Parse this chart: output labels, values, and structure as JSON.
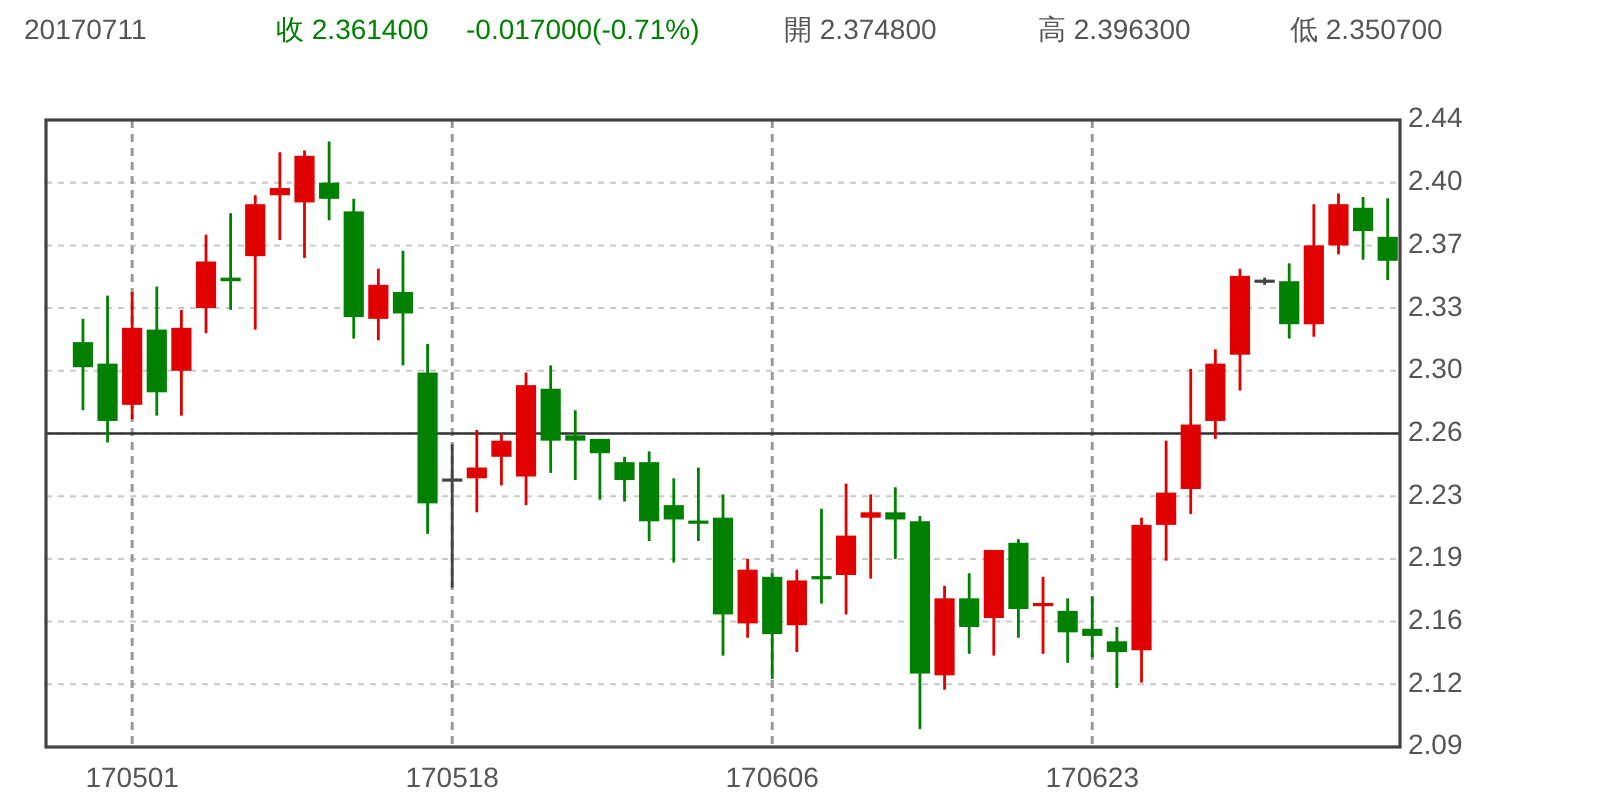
{
  "chart_data": {
    "type": "candlestick",
    "title": "20170711",
    "annotations": [
      "收 2.361400",
      "-0.017000(-0.71%)",
      "開 2.374800",
      "高 2.396300",
      "低 2.350700"
    ],
    "categories": [
      null,
      null,
      "170501",
      null,
      null,
      null,
      null,
      null,
      null,
      null,
      null,
      null,
      null,
      null,
      null,
      "170518",
      null,
      null,
      null,
      null,
      null,
      null,
      null,
      null,
      null,
      null,
      null,
      null,
      "170606",
      null,
      null,
      null,
      null,
      null,
      null,
      null,
      null,
      null,
      null,
      null,
      null,
      "170623",
      null,
      null,
      null,
      null,
      null,
      null,
      null,
      null,
      null,
      null,
      null,
      null
    ],
    "ohlc": [
      [
        2.316,
        2.329,
        2.278,
        2.302
      ],
      [
        2.304,
        2.342,
        2.26,
        2.272
      ],
      [
        2.281,
        2.344,
        2.273,
        2.324
      ],
      [
        2.323,
        2.347,
        2.275,
        2.288
      ],
      [
        2.3,
        2.334,
        2.275,
        2.324
      ],
      [
        2.335,
        2.376,
        2.321,
        2.361
      ],
      [
        2.352,
        2.388,
        2.334,
        2.35
      ],
      [
        2.364,
        2.398,
        2.323,
        2.393
      ],
      [
        2.398,
        2.422,
        2.373,
        2.402
      ],
      [
        2.394,
        2.423,
        2.363,
        2.42
      ],
      [
        2.405,
        2.428,
        2.384,
        2.396
      ],
      [
        2.389,
        2.396,
        2.318,
        2.33
      ],
      [
        2.329,
        2.357,
        2.317,
        2.348
      ],
      [
        2.344,
        2.367,
        2.303,
        2.332
      ],
      [
        2.299,
        2.315,
        2.209,
        2.226
      ],
      [
        2.239,
        2.259,
        2.179,
        2.239
      ],
      [
        2.24,
        2.267,
        2.221,
        2.246
      ],
      [
        2.252,
        2.265,
        2.236,
        2.261
      ],
      [
        2.241,
        2.299,
        2.225,
        2.292
      ],
      [
        2.29,
        2.303,
        2.243,
        2.261
      ],
      [
        2.264,
        2.278,
        2.239,
        2.261
      ],
      [
        2.262,
        2.262,
        2.228,
        2.254
      ],
      [
        2.249,
        2.252,
        2.227,
        2.239
      ],
      [
        2.249,
        2.255,
        2.205,
        2.216
      ],
      [
        2.225,
        2.24,
        2.193,
        2.217
      ],
      [
        2.216,
        2.246,
        2.205,
        2.215
      ],
      [
        2.218,
        2.231,
        2.141,
        2.164
      ],
      [
        2.159,
        2.195,
        2.151,
        2.189
      ],
      [
        2.185,
        2.187,
        2.128,
        2.153
      ],
      [
        2.158,
        2.189,
        2.143,
        2.183
      ],
      [
        2.185,
        2.223,
        2.17,
        2.184
      ],
      [
        2.186,
        2.237,
        2.164,
        2.208
      ],
      [
        2.218,
        2.231,
        2.184,
        2.221
      ],
      [
        2.221,
        2.235,
        2.195,
        2.217
      ],
      [
        2.216,
        2.219,
        2.1,
        2.131
      ],
      [
        2.13,
        2.18,
        2.122,
        2.173
      ],
      [
        2.173,
        2.187,
        2.142,
        2.157
      ],
      [
        2.162,
        2.2,
        2.141,
        2.2
      ],
      [
        2.204,
        2.206,
        2.151,
        2.167
      ],
      [
        2.169,
        2.185,
        2.142,
        2.17
      ],
      [
        2.166,
        2.173,
        2.137,
        2.154
      ],
      [
        2.156,
        2.174,
        2.14,
        2.152
      ],
      [
        2.149,
        2.157,
        2.123,
        2.143
      ],
      [
        2.144,
        2.218,
        2.126,
        2.214
      ],
      [
        2.214,
        2.261,
        2.194,
        2.232
      ],
      [
        2.234,
        2.301,
        2.22,
        2.27
      ],
      [
        2.272,
        2.312,
        2.262,
        2.304
      ],
      [
        2.309,
        2.357,
        2.289,
        2.353
      ],
      [
        2.35,
        2.352,
        2.348,
        2.35
      ],
      [
        2.35,
        2.36,
        2.318,
        2.326
      ],
      [
        2.326,
        2.393,
        2.319,
        2.37
      ],
      [
        2.37,
        2.399,
        2.365,
        2.393
      ],
      [
        2.391,
        2.397,
        2.362,
        2.378
      ],
      [
        2.3748,
        2.3963,
        2.3507,
        2.3614
      ]
    ],
    "colors": [
      "#008000",
      "#008000",
      "#e00000",
      "#008000",
      "#e00000",
      "#e00000",
      "#008000",
      "#e00000",
      "#e00000",
      "#e00000",
      "#008000",
      "#008000",
      "#e00000",
      "#008000",
      "#008000",
      "#444444",
      "#e00000",
      "#e00000",
      "#e00000",
      "#008000",
      "#008000",
      "#008000",
      "#008000",
      "#008000",
      "#008000",
      "#008000",
      "#008000",
      "#e00000",
      "#008000",
      "#e00000",
      "#008000",
      "#e00000",
      "#e00000",
      "#008000",
      "#008000",
      "#e00000",
      "#008000",
      "#e00000",
      "#008000",
      "#e00000",
      "#008000",
      "#008000",
      "#008000",
      "#e00000",
      "#e00000",
      "#e00000",
      "#e00000",
      "#e00000",
      "#444444",
      "#008000",
      "#e00000",
      "#e00000",
      "#008000",
      "#008000"
    ],
    "ylim": [
      2.09,
      2.44
    ],
    "yticks": [
      2.09,
      {
        "value": 2.125,
        "label": "2.12"
      },
      2.16,
      {
        "value": 2.195,
        "label": "2.19"
      },
      2.23,
      {
        "value": 2.265,
        "label": "2.26"
      },
      {
        "value": 2.3,
        "label": "2.30"
      },
      {
        "value": 2.335,
        "label": "2.33"
      },
      2.37,
      {
        "value": 2.405,
        "label": "2.40"
      },
      2.44
    ],
    "ref_lines": [
      {
        "axis": "y",
        "value": 2.265,
        "color": "#333333"
      }
    ],
    "grid": true
  }
}
